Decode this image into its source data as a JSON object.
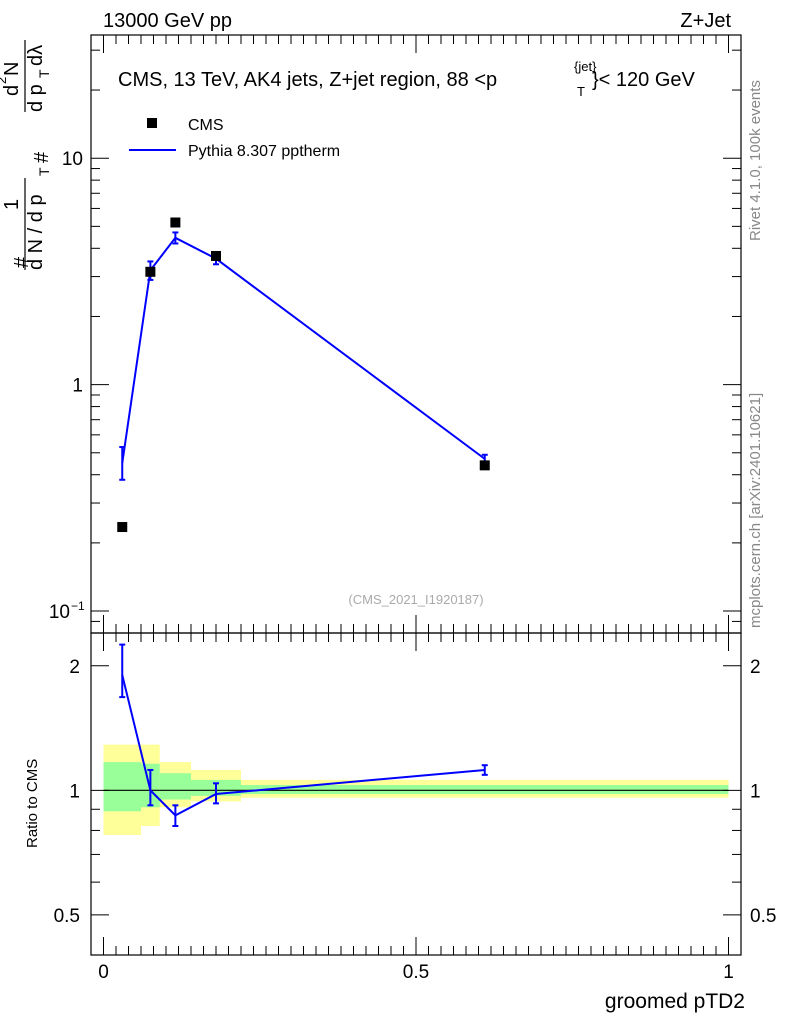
{
  "header": {
    "left": "13000 GeV pp",
    "right": "Z+Jet"
  },
  "side_labels": {
    "rivet": "Rivet 4.1.0,  100k events",
    "mcplots": "mcplots.cern.ch [arXiv:2401.10621]"
  },
  "chart_data": [
    {
      "type": "scatter",
      "title": "CMS, 13 TeV, AK4 jets, Z+jet region, 88 < p_T^{jet} < 120 GeV",
      "title_parts": {
        "main": "CMS, 13 TeV, AK4 jets, Z+jet region, 88 <p",
        "sub": "T",
        "sup": "{jet}",
        "tail": "}< 120 GeV"
      },
      "ylabel": "1/dN/dp_T  d²N/dp_T dλ",
      "ylabel_parts": {
        "hash1": "#",
        "one": "1",
        "den": "d N / d p",
        "denSub": "T",
        "hash2": "#",
        "num": "d",
        "numSup": "2",
        "numN": "N",
        "den2": "d p",
        "den2Sub": "T",
        "lam": "dλ"
      },
      "yscale": "log",
      "ylim": [
        0.08,
        35
      ],
      "xlim": [
        -0.02,
        1.02
      ],
      "yticks": [
        {
          "value": 10,
          "label": "10"
        },
        {
          "value": 1,
          "label": "1"
        },
        {
          "value": 0.1,
          "label": "10",
          "sup": "−1"
        }
      ],
      "watermark": "(CMS_2021_I1920187)",
      "legend": {
        "position": "top-left",
        "entries": [
          "CMS",
          "Pythia 8.307 pptherm"
        ]
      },
      "series": [
        {
          "name": "CMS",
          "marker": "square",
          "color": "#000000",
          "x": [
            0.03,
            0.075,
            0.115,
            0.18,
            0.61
          ],
          "y": [
            0.235,
            3.15,
            5.2,
            3.7,
            0.44
          ]
        },
        {
          "name": "Pythia 8.307 pptherm",
          "marker": "line",
          "color": "#0000ff",
          "x": [
            0.03,
            0.075,
            0.115,
            0.18,
            0.61
          ],
          "y": [
            0.45,
            3.2,
            4.45,
            3.6,
            0.47
          ],
          "err_lo": [
            0.38,
            2.9,
            4.2,
            3.4,
            0.45
          ],
          "err_hi": [
            0.53,
            3.5,
            4.7,
            3.8,
            0.49
          ]
        }
      ]
    },
    {
      "type": "line",
      "ylabel": "Ratio to CMS",
      "xlabel": "groomed pTD2",
      "yscale": "log",
      "ylim": [
        0.4,
        2.4
      ],
      "xlim": [
        -0.02,
        1.02
      ],
      "yticks": [
        {
          "value": 2,
          "label": "2"
        },
        {
          "value": 1,
          "label": "1"
        },
        {
          "value": 0.5,
          "label": "0.5"
        }
      ],
      "xticks": [
        {
          "value": 0,
          "label": "0"
        },
        {
          "value": 0.5,
          "label": "0.5"
        },
        {
          "value": 1,
          "label": "1"
        }
      ],
      "bands": [
        {
          "x0": 0.0,
          "x1": 0.06,
          "green": [
            0.89,
            1.17
          ],
          "yellow": [
            0.78,
            1.29
          ]
        },
        {
          "x0": 0.06,
          "x1": 0.09,
          "green": [
            0.91,
            1.16
          ],
          "yellow": [
            0.82,
            1.29
          ]
        },
        {
          "x0": 0.09,
          "x1": 0.14,
          "green": [
            0.95,
            1.1
          ],
          "yellow": [
            0.91,
            1.17
          ]
        },
        {
          "x0": 0.14,
          "x1": 0.22,
          "green": [
            0.97,
            1.06
          ],
          "yellow": [
            0.94,
            1.12
          ]
        },
        {
          "x0": 0.22,
          "x1": 1.0,
          "green": [
            0.98,
            1.03
          ],
          "yellow": [
            0.96,
            1.06
          ]
        }
      ],
      "series": [
        {
          "name": "Pythia 8.307 pptherm",
          "color": "#0000ff",
          "x": [
            0.03,
            0.075,
            0.115,
            0.18,
            0.61
          ],
          "y": [
            1.9,
            1.0,
            0.87,
            0.98,
            1.12
          ],
          "err_lo": [
            1.68,
            0.92,
            0.82,
            0.93,
            1.09
          ],
          "err_hi": [
            2.25,
            1.12,
            0.92,
            1.04,
            1.15
          ]
        }
      ]
    }
  ]
}
